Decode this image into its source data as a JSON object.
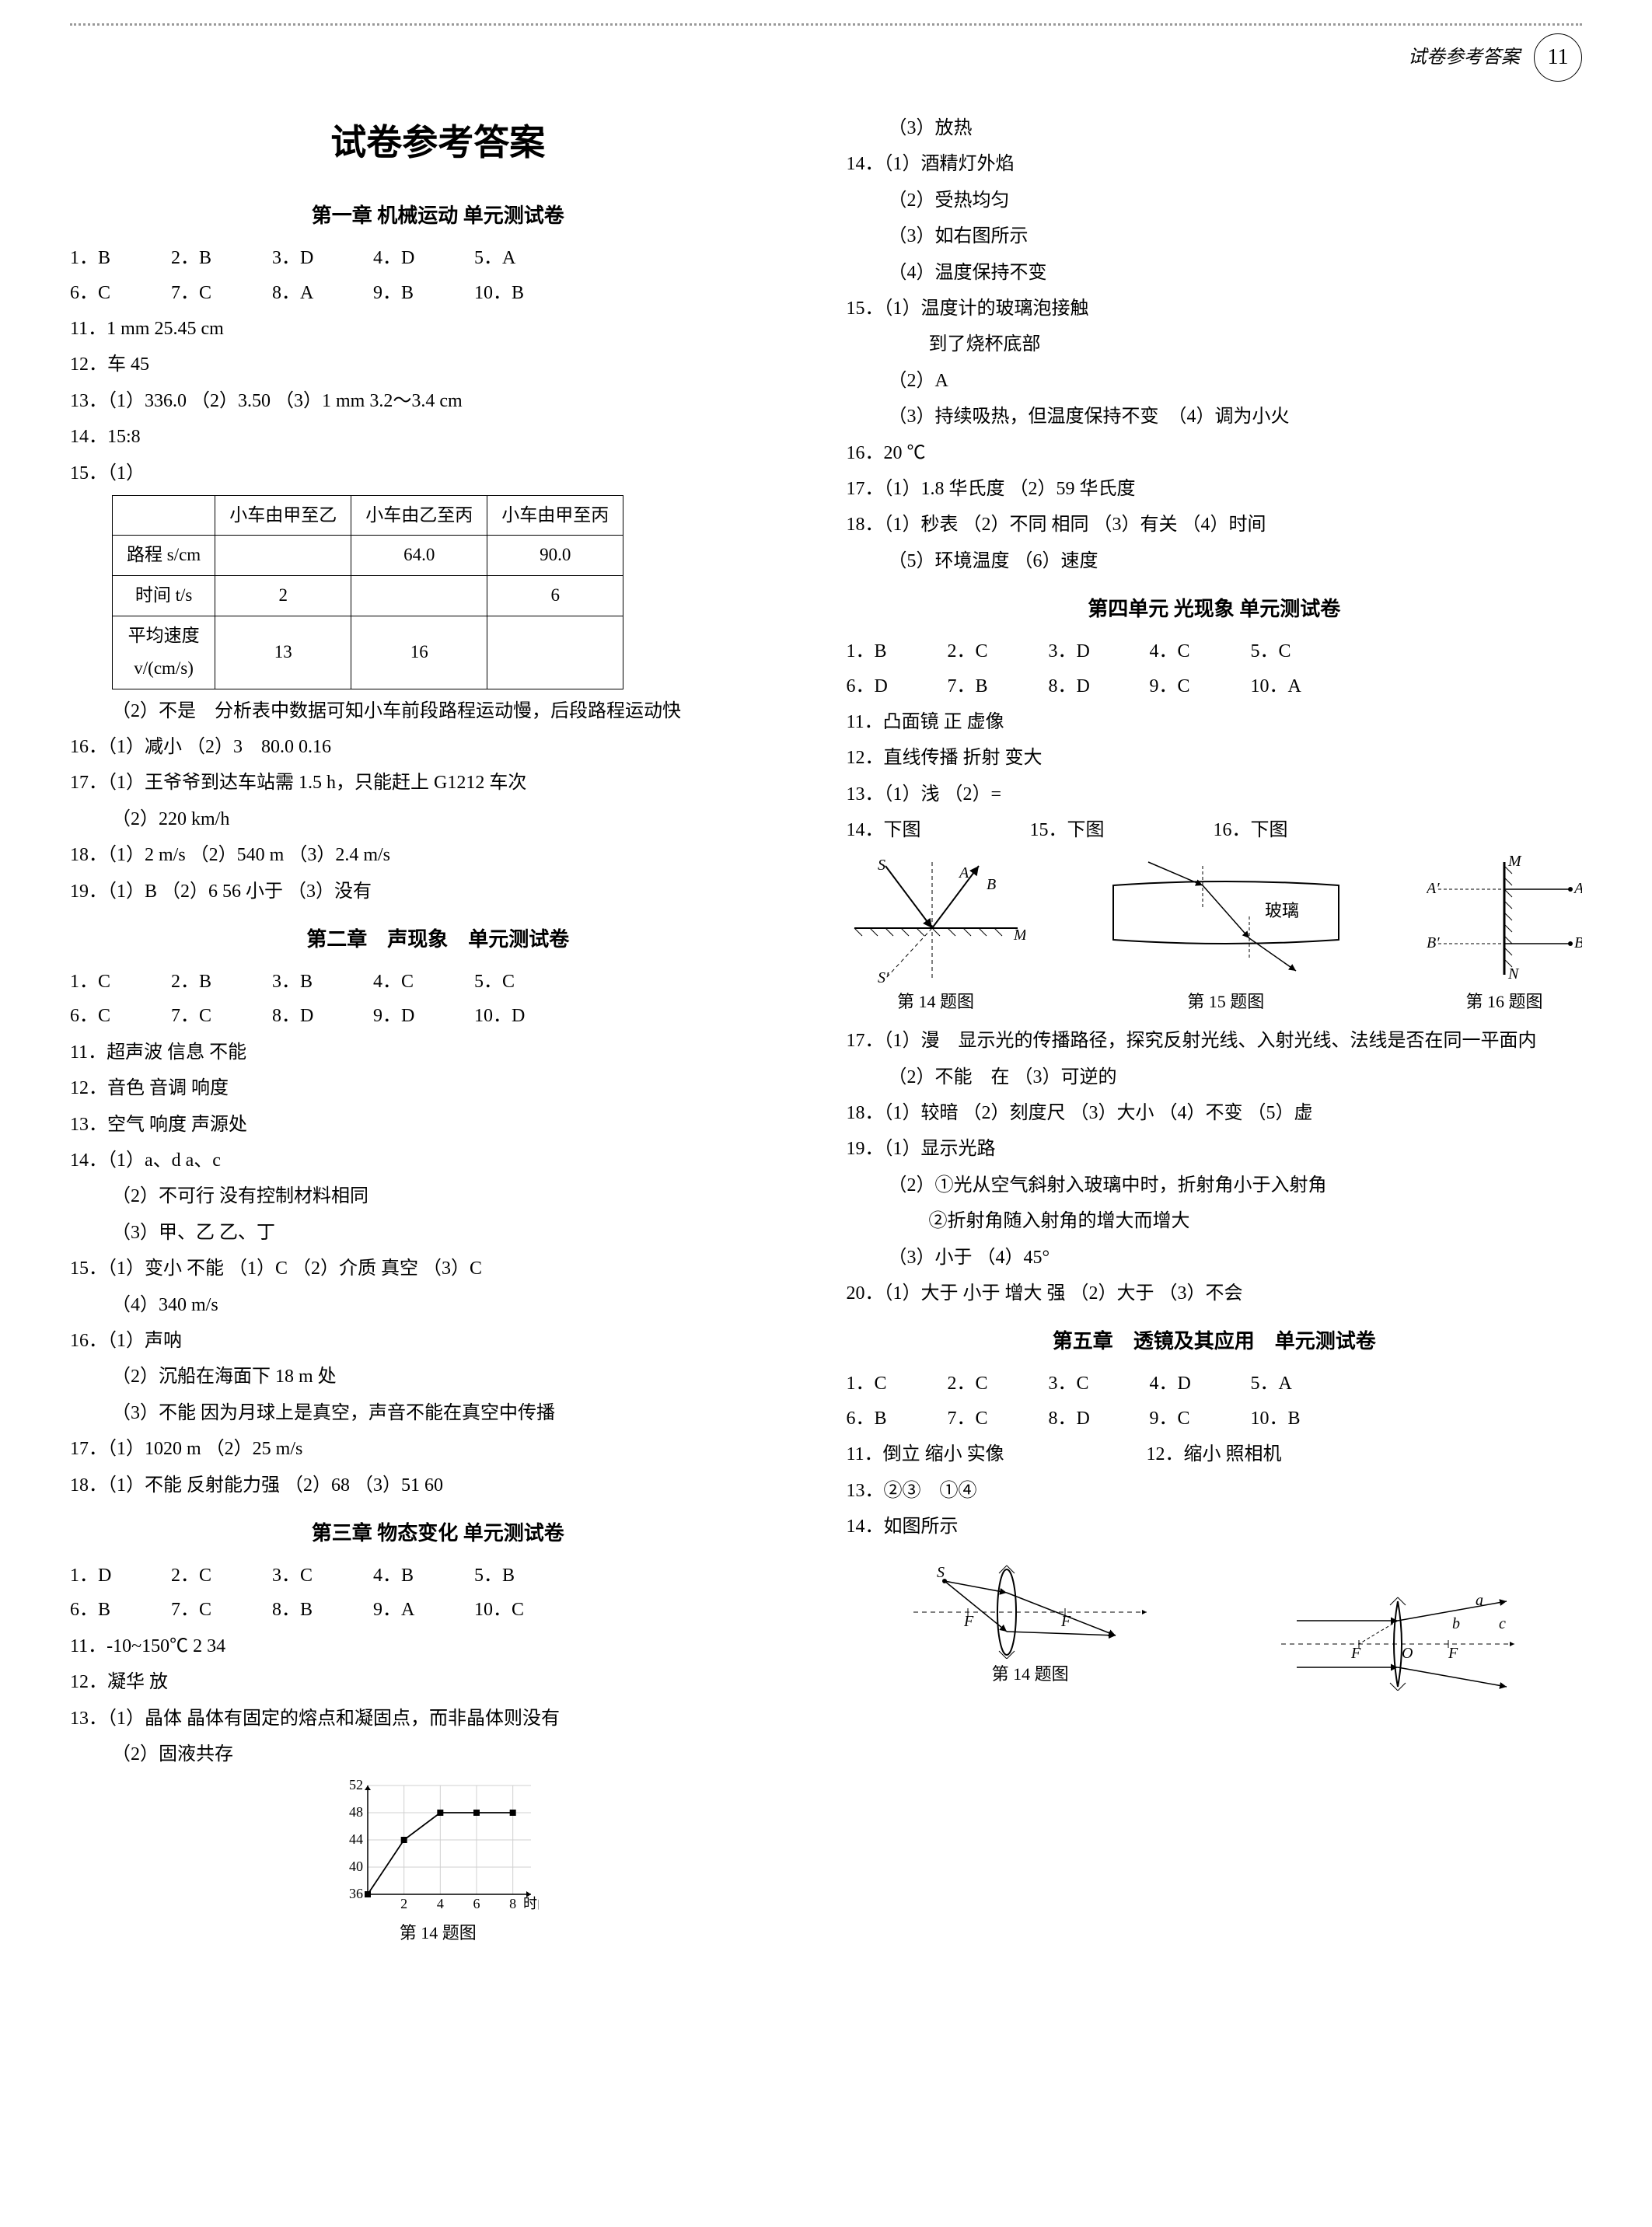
{
  "header": {
    "label": "试卷参考答案",
    "page": "11"
  },
  "main_title": "试卷参考答案",
  "colors": {
    "text": "#000000",
    "bg": "#ffffff",
    "border": "#000000",
    "axis": "#000000"
  },
  "left": {
    "ch1": {
      "title": "第一章  机械运动  单元测试卷",
      "mc1": [
        "1．B",
        "2．B",
        "3．D",
        "4．D",
        "5．A"
      ],
      "mc2": [
        "6．C",
        "7．C",
        "8．A",
        "9．B",
        "10．B"
      ],
      "q11": "11．1 mm  25.45 cm",
      "q12": "12．车  45",
      "q13": "13．（1）336.0 （2）3.50 （3）1 mm  3.2～3.4 cm",
      "q14": "14．15:8",
      "q15a": "15．（1）",
      "tbl": {
        "cols": [
          "",
          "小车由甲至乙",
          "小车由乙至丙",
          "小车由甲至丙"
        ],
        "rows": [
          [
            "路程 s/cm",
            "",
            "64.0",
            "90.0"
          ],
          [
            "时间 t/s",
            "2",
            "",
            "6"
          ],
          [
            "平均速度\nv/(cm/s)",
            "13",
            "16",
            ""
          ]
        ]
      },
      "q15b": "（2）不是　分析表中数据可知小车前段路程运动慢，后段路程运动快",
      "q16": "16．（1）减小 （2）3　80.0  0.16",
      "q17a": "17．（1）王爷爷到达车站需 1.5 h，只能赶上 G1212 车次",
      "q17b": "（2）220 km/h",
      "q18": "18．（1）2 m/s （2）540 m （3）2.4 m/s",
      "q19": "19．（1）B （2）6  56  小于 （3）没有"
    },
    "ch2": {
      "title": "第二章　声现象　单元测试卷",
      "mc1": [
        "1．C",
        "2．B",
        "3．B",
        "4．C",
        "5．C"
      ],
      "mc2": [
        "6．C",
        "7．C",
        "8．D",
        "9．D",
        "10．D"
      ],
      "q11": "11．超声波  信息  不能",
      "q12": "12．音色  音调  响度",
      "q13": "13．空气  响度  声源处",
      "q14a": "14．（1）a、d  a、c",
      "q14b": "（2）不可行  没有控制材料相同",
      "q14c": "（3）甲、乙  乙、丁",
      "q15a": "15．（1）变小  不能 （1）C （2）介质  真空 （3）C",
      "q15b": "（4）340 m/s",
      "q16a": "16．（1）声呐",
      "q16b": "（2）沉船在海面下 18 m 处",
      "q16c": "（3）不能  因为月球上是真空，声音不能在真空中传播",
      "q17": "17．（1）1020 m （2）25 m/s",
      "q18": "18．（1）不能  反射能力强 （2）68 （3）51  60"
    },
    "ch3": {
      "title": "第三章  物态变化  单元测试卷",
      "mc1": [
        "1．D",
        "2．C",
        "3．C",
        "4．B",
        "5．B"
      ],
      "mc2": [
        "6．B",
        "7．C",
        "8．B",
        "9．A",
        "10．C"
      ],
      "q11": "11．-10~150℃  2  34",
      "q12": "12．凝华  放",
      "q13a": "13．（1）晶体  晶体有固定的熔点和凝固点，而非晶体则没有",
      "q13b": "（2）固液共存",
      "fig14": "第 14 题图",
      "chart": {
        "type": "line",
        "x": [
          0,
          2,
          4,
          6,
          8
        ],
        "y": [
          36,
          44,
          48,
          48,
          48
        ],
        "ylim": [
          36,
          52
        ],
        "yticks": [
          36,
          40,
          44,
          48,
          52
        ],
        "xlim": [
          0,
          9
        ],
        "xticks": [
          2,
          4,
          6,
          8
        ],
        "xlabel": "时间/min",
        "marker": "square",
        "marker_size": 5,
        "line_color": "#000000",
        "grid_color": "#d0d0d0",
        "font_size": 18
      }
    }
  },
  "right": {
    "ch3cont": {
      "q13c": "（3）放热",
      "q14a": "14．（1）酒精灯外焰",
      "q14b": "（2）受热均匀",
      "q14c": "（3）如右图所示",
      "q14d": "（4）温度保持不变",
      "q15a": "15．（1）温度计的玻璃泡接触",
      "q15a2": "到了烧杯底部",
      "q15b": "（2）A",
      "q15c": "（3）持续吸热，但温度保持不变　（4）调为小火",
      "q16": "16．20 ℃",
      "q17": "17．（1）1.8 华氏度 （2）59 华氏度",
      "q18a": "18．（1）秒表 （2）不同  相同 （3）有关 （4）时间",
      "q18b": "（5）环境温度 （6）速度"
    },
    "ch4": {
      "title": "第四单元  光现象  单元测试卷",
      "mc1": [
        "1．B",
        "2．C",
        "3．D",
        "4．C",
        "5．C"
      ],
      "mc2": [
        "6．D",
        "7．B",
        "8．D",
        "9．C",
        "10．A"
      ],
      "q11": "11．凸面镜  正  虚像",
      "q12": "12．直线传播  折射  变大",
      "q13": "13．（1）浅 （2）=",
      "q14": "14．下图",
      "q15": "15．下图",
      "q16": "16．下图",
      "fig14": "第 14 题图",
      "fig15": "第 15 题图",
      "fig15label": "玻璃",
      "fig16": "第 16 题图",
      "q17a": "17．（1）漫　显示光的传播路径，探究反射光线、入射光线、法线是否在同一平面内",
      "q17b": "（2）不能　在 （3）可逆的",
      "q18": "18．（1）较暗 （2）刻度尺 （3）大小 （4）不变 （5）虚",
      "q19a": "19．（1）显示光路",
      "q19b": "（2）①光从空气斜射入玻璃中时，折射角小于入射角",
      "q19c": "②折射角随入射角的增大而增大",
      "q19d": "（3）小于 （4）45°",
      "q20": "20．（1）大于  小于  增大  强 （2）大于 （3）不会"
    },
    "ch5": {
      "title": "第五章　透镜及其应用　单元测试卷",
      "mc1": [
        "1．C",
        "2．C",
        "3．C",
        "4．D",
        "5．A"
      ],
      "mc2": [
        "6．B",
        "7．C",
        "8．D",
        "9．C",
        "10．B"
      ],
      "q11": "11．倒立  缩小  实像",
      "q12": "12．缩小  照相机",
      "q13": "13．②③　①④",
      "q14": "14．如图所示",
      "fig14": "第 14 题图"
    }
  }
}
